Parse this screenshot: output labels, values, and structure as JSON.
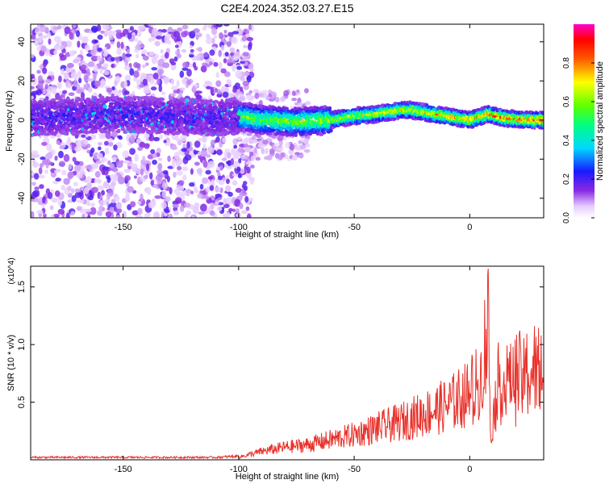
{
  "figure": {
    "title": "C2E4.2024.352.03.27.E15"
  },
  "chart_data": [
    {
      "type": "heatmap",
      "xlabel": "Height of straight line (km)",
      "ylabel": "Frequency (Hz)",
      "xlim": [
        -190,
        32
      ],
      "ylim": [
        -50,
        49
      ],
      "x_ticks": [
        -150,
        -100,
        -50,
        0
      ],
      "x_tick_labels": [
        "-150",
        "-100",
        "-50",
        "0"
      ],
      "y_ticks": [
        -40,
        -20,
        0,
        20,
        40
      ],
      "y_tick_labels": [
        "-40",
        "-20",
        "0",
        "20",
        "40"
      ],
      "colorbar": {
        "label": "Normalized spectral amplitude",
        "range": [
          0,
          1
        ],
        "ticks": [
          0.0,
          0.2,
          0.4,
          0.6,
          0.8
        ],
        "tick_labels": [
          "0.0",
          "0.2",
          "0.4",
          "0.6",
          "0.8"
        ],
        "colormap": "rainbow (white-purple-blue-cyan-green-yellow-red-magenta)"
      },
      "ridge": {
        "description_points_x": [
          -190,
          -170,
          -150,
          -130,
          -110,
          -100,
          -90,
          -75,
          -60,
          -50,
          -40,
          -30,
          -25,
          -15,
          -5,
          0,
          8,
          15,
          25,
          32
        ],
        "description_points_freq": [
          1,
          2,
          3,
          2,
          1,
          2,
          0,
          -1,
          0,
          2,
          3,
          5,
          5,
          3,
          1,
          0,
          3,
          1,
          0,
          0
        ],
        "noise_region_x": [
          -190,
          -100
        ],
        "noise_freq_extent": [
          -50,
          49
        ]
      },
      "grid": false
    },
    {
      "type": "line",
      "xlabel": "Height of straight line (km)",
      "ylabel": "SNR (10 * v/v)",
      "y_multiplier": "(x10^4)",
      "xlim": [
        -190,
        32
      ],
      "ylim": [
        0,
        1.68
      ],
      "x_ticks": [
        -150,
        -100,
        -50,
        0
      ],
      "x_tick_labels": [
        "-150",
        "-100",
        "-50",
        "0"
      ],
      "y_ticks": [
        0.5,
        1.0,
        1.5
      ],
      "y_tick_labels": [
        "0.5",
        "1.0",
        "1.5"
      ],
      "series": [
        {
          "color": "#e8312b",
          "envelope_x": [
            -190,
            -150,
            -110,
            -100,
            -90,
            -80,
            -70,
            -60,
            -50,
            -40,
            -30,
            -20,
            -10,
            0,
            5,
            8,
            9,
            12,
            20,
            32
          ],
          "envelope_y": [
            0.02,
            0.02,
            0.02,
            0.03,
            0.1,
            0.15,
            0.18,
            0.24,
            0.3,
            0.38,
            0.45,
            0.55,
            0.65,
            0.8,
            0.95,
            1.66,
            0.25,
            0.9,
            0.98,
            1.08
          ]
        }
      ],
      "grid": false
    }
  ]
}
